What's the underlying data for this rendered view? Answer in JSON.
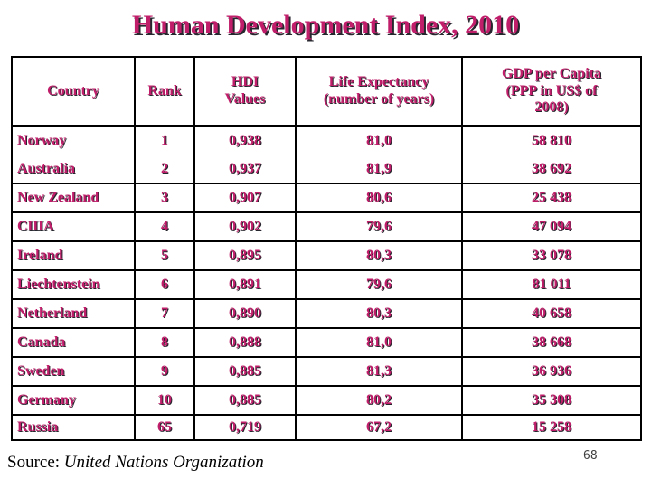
{
  "title": "Human Development Index, 2010",
  "table": {
    "headers": [
      "Country",
      "Rank",
      "HDI\nValues",
      "Life Expectancy\n(number of years)",
      "GDP per Capita\n(PPP in US$ of\n2008)"
    ],
    "rows": [
      {
        "country": "Norway",
        "rank": "1",
        "hdi": "0,938",
        "life": "81,0",
        "gdp": "58 810"
      },
      {
        "country": "Australia",
        "rank": "2",
        "hdi": "0,937",
        "life": "81,9",
        "gdp": "38 692"
      },
      {
        "country": "New Zealand",
        "rank": "3",
        "hdi": "0,907",
        "life": "80,6",
        "gdp": "25 438"
      },
      {
        "country": "США",
        "rank": "4",
        "hdi": "0,902",
        "life": "79,6",
        "gdp": "47 094"
      },
      {
        "country": "Ireland",
        "rank": "5",
        "hdi": "0,895",
        "life": "80,3",
        "gdp": "33 078"
      },
      {
        "country": "Liechtenstein",
        "rank": "6",
        "hdi": "0,891",
        "life": "79,6",
        "gdp": "81 011"
      },
      {
        "country": "Netherland",
        "rank": "7",
        "hdi": "0,890",
        "life": "80,3",
        "gdp": "40 658"
      },
      {
        "country": "Canada",
        "rank": "8",
        "hdi": "0,888",
        "life": "81,0",
        "gdp": "38 668"
      },
      {
        "country": "Sweden",
        "rank": "9",
        "hdi": "0,885",
        "life": "81,3",
        "gdp": "36 936"
      },
      {
        "country": "Germany",
        "rank": "10",
        "hdi": "0,885",
        "life": "80,2",
        "gdp": "35 308"
      },
      {
        "country": "Russia",
        "rank": "65",
        "hdi": "0,719",
        "life": "67,2",
        "gdp": "15 258"
      }
    ]
  },
  "footer": {
    "source_label": "Source:",
    "source_value": "United Nations Organization",
    "page_number": "68"
  },
  "colors": {
    "accent": "#C01E6A",
    "text_shadow": "#26262E",
    "border": "#000000",
    "background": "#FFFFFF",
    "footer_text": "#000000",
    "page_number_text": "#404040"
  }
}
